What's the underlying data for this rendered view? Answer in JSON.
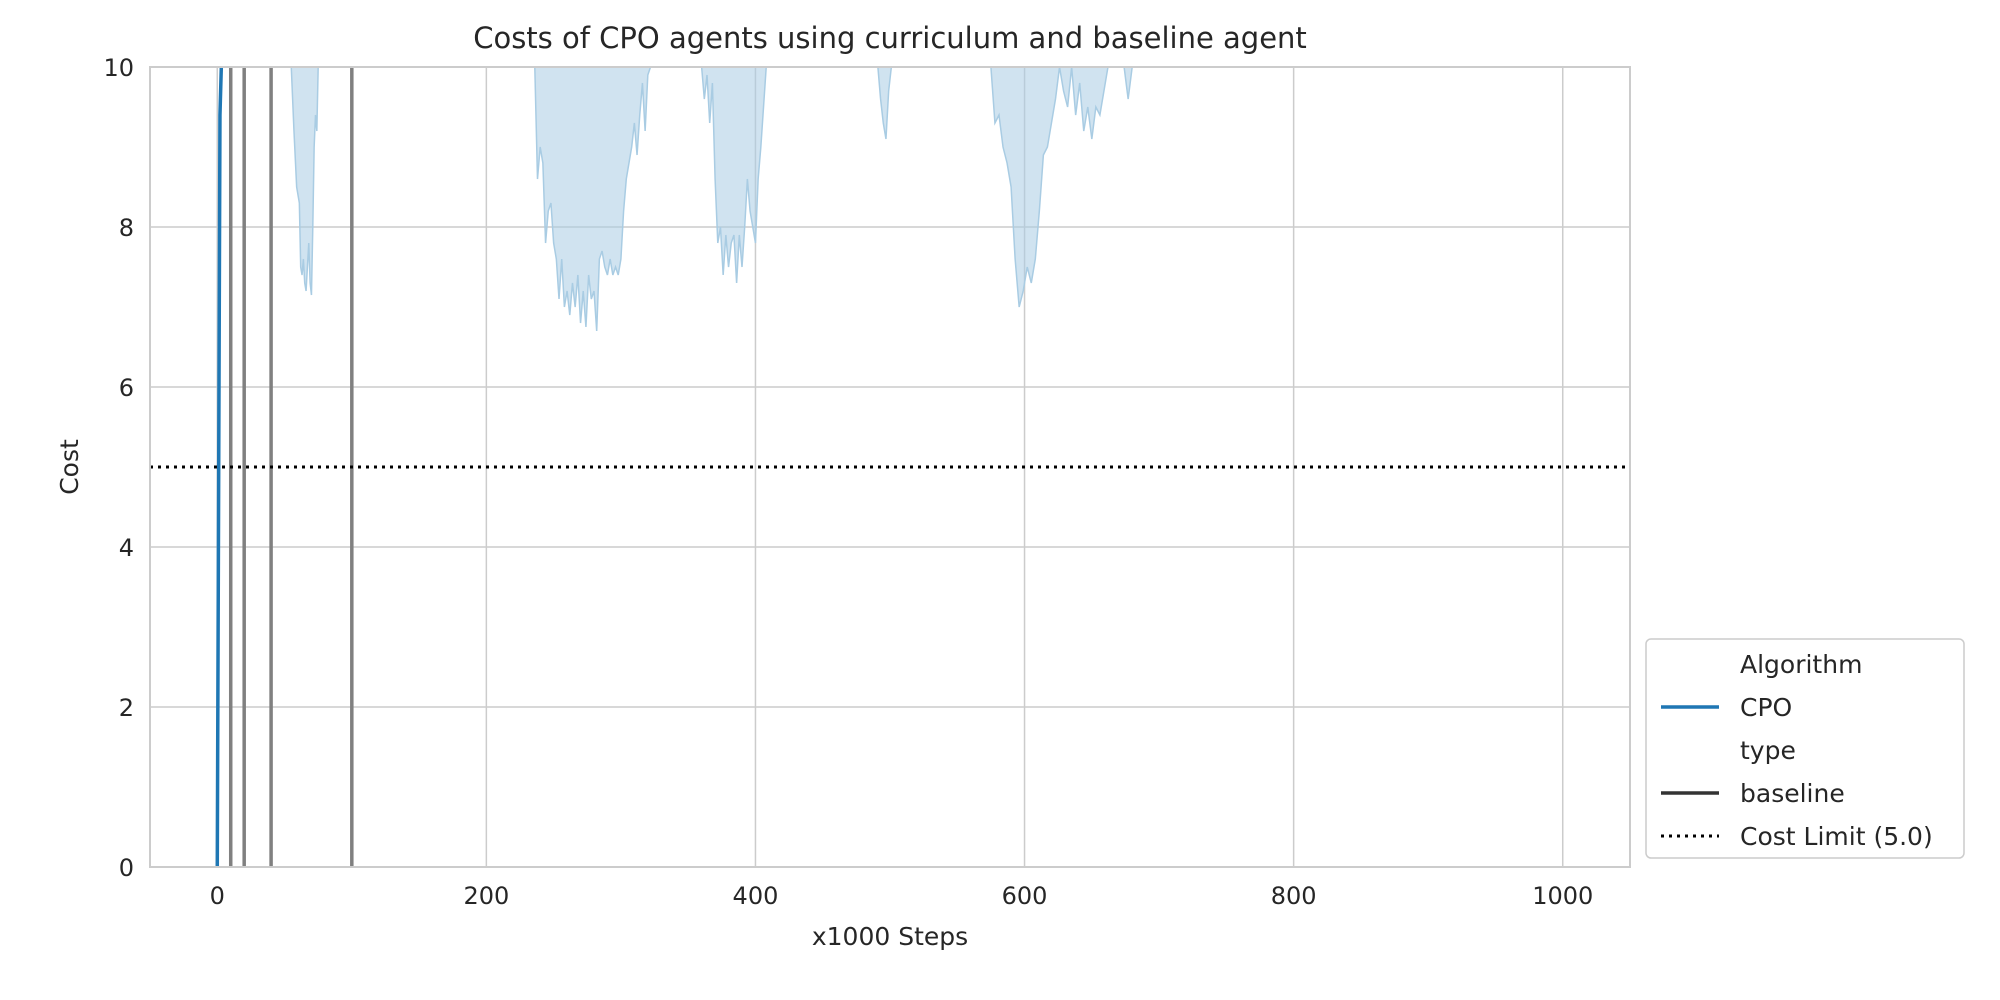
{
  "chart_data": {
    "type": "line",
    "title": "Costs of CPO agents using curriculum and baseline agent",
    "xlabel": "x1000 Steps",
    "ylabel": "Cost",
    "xlim": [
      -50,
      1050
    ],
    "ylim": [
      0,
      10
    ],
    "xticks": [
      0,
      200,
      400,
      600,
      800,
      1000
    ],
    "yticks": [
      0,
      2,
      4,
      6,
      8,
      10
    ],
    "grid": true,
    "legend_position": "lower-right-outside",
    "colors": {
      "cpo": "#1f77b4",
      "band": "#a9cce3",
      "baseline": "#808080",
      "legend_baseline": "#333333",
      "limit": "#000000",
      "grid": "#cccccc",
      "spine": "#cccccc"
    },
    "series": [
      {
        "name": "CPO",
        "role": "mean",
        "x": [
          0,
          1,
          2,
          3
        ],
        "y": [
          0,
          4.7,
          9.4,
          10
        ]
      },
      {
        "name": "CPO",
        "role": "confidence-band-lower-edge",
        "segments": [
          {
            "x": [
              55,
              57,
              59,
              61,
              62,
              63,
              64,
              65,
              66,
              67,
              68,
              69,
              70,
              71,
              72,
              73,
              74,
              75
            ],
            "y": [
              10,
              9.2,
              8.5,
              8.3,
              7.5,
              7.4,
              7.6,
              7.3,
              7.2,
              7.5,
              7.8,
              7.3,
              7.15,
              8.0,
              9.0,
              9.4,
              9.2,
              10
            ]
          },
          {
            "x": [
              236,
              238,
              240,
              242,
              244,
              246,
              248,
              250,
              252,
              254,
              256,
              258,
              260,
              262,
              264,
              266,
              268,
              270,
              272,
              274,
              276,
              278,
              280,
              282,
              284,
              286,
              288,
              290,
              292,
              294,
              296,
              298,
              300,
              302,
              304,
              306,
              308,
              310,
              312,
              314,
              316,
              318,
              320,
              322
            ],
            "y": [
              10,
              8.6,
              9.0,
              8.8,
              7.8,
              8.2,
              8.3,
              7.8,
              7.6,
              7.1,
              7.6,
              7.0,
              7.2,
              6.9,
              7.3,
              7.0,
              7.4,
              6.8,
              7.2,
              6.75,
              7.4,
              7.1,
              7.2,
              6.7,
              7.6,
              7.7,
              7.5,
              7.4,
              7.6,
              7.4,
              7.5,
              7.4,
              7.6,
              8.2,
              8.6,
              8.8,
              9.0,
              9.3,
              8.9,
              9.4,
              9.8,
              9.2,
              9.9,
              10
            ]
          },
          {
            "x": [
              360,
              362,
              364,
              366,
              368,
              370,
              372,
              374,
              376,
              378,
              380,
              382,
              384,
              386,
              388,
              390,
              392,
              394,
              396,
              398,
              400,
              402,
              404,
              406,
              408
            ],
            "y": [
              10,
              9.6,
              9.9,
              9.3,
              9.8,
              8.6,
              7.8,
              8.0,
              7.4,
              7.9,
              7.5,
              7.8,
              7.9,
              7.3,
              7.9,
              7.5,
              8.0,
              8.6,
              8.2,
              8.0,
              7.8,
              8.6,
              9.0,
              9.5,
              10
            ]
          },
          {
            "x": [
              491,
              493,
              495,
              497,
              499,
              501
            ],
            "y": [
              10,
              9.6,
              9.3,
              9.1,
              9.7,
              10
            ]
          },
          {
            "x": [
              575,
              578,
              581,
              584,
              587,
              590,
              593,
              596,
              599,
              602,
              605,
              608,
              611,
              614,
              617,
              620,
              623,
              626,
              629,
              632,
              635,
              638,
              641,
              644,
              647,
              650,
              653,
              656,
              659,
              662,
              665,
              668,
              671,
              674,
              677,
              680
            ],
            "y": [
              10,
              9.3,
              9.4,
              9.0,
              8.8,
              8.5,
              7.6,
              7.0,
              7.2,
              7.5,
              7.3,
              7.6,
              8.2,
              8.9,
              9.0,
              9.3,
              9.6,
              10,
              9.7,
              9.5,
              10,
              9.4,
              9.8,
              9.2,
              9.5,
              9.1,
              9.5,
              9.4,
              9.7,
              10,
              10,
              10,
              10,
              10,
              9.6,
              10
            ]
          }
        ]
      },
      {
        "name": "baseline",
        "role": "baseline-runs",
        "x": [
          10,
          20,
          40,
          100
        ]
      },
      {
        "name": "Cost Limit (5.0)",
        "role": "threshold",
        "y": 5.0
      }
    ],
    "legend": [
      {
        "label": "Algorithm",
        "kind": "header"
      },
      {
        "label": "CPO",
        "kind": "solid",
        "color_key": "cpo"
      },
      {
        "label": "type",
        "kind": "header"
      },
      {
        "label": "baseline",
        "kind": "solid",
        "color_key": "legend_baseline"
      },
      {
        "label": "Cost Limit (5.0)",
        "kind": "dotted",
        "color_key": "limit"
      }
    ]
  }
}
